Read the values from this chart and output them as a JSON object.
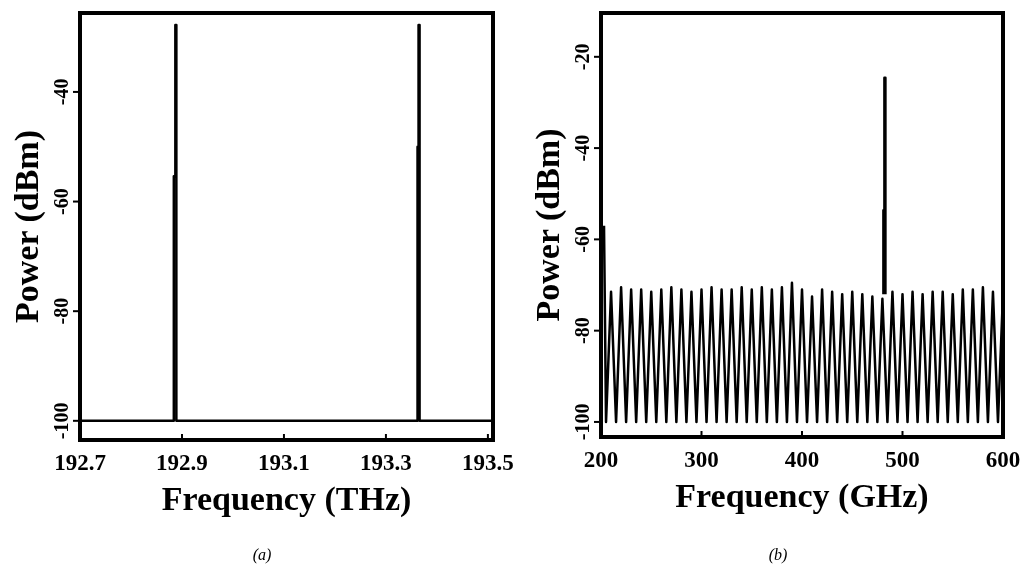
{
  "chart_data": [
    {
      "type": "line",
      "xlabel": "Frequency (THz)",
      "ylabel": "Power (dBm)",
      "xlim": [
        192.7,
        193.51
      ],
      "ylim": [
        -103.5,
        -25.6
      ],
      "xticks": [
        192.7,
        192.9,
        193.1,
        193.3,
        193.5
      ],
      "yticks": [
        -40,
        -60,
        -80,
        -100
      ],
      "annotations": [
        "(a)"
      ],
      "series": [
        {
          "color": "#000000",
          "x": [
            192.7,
            192.884,
            192.884,
            192.887,
            192.887,
            192.889,
            192.889,
            193.362,
            193.362,
            193.364,
            193.364,
            193.366,
            193.366,
            193.51
          ],
          "values": [
            -100,
            -100,
            -55.4,
            -55.4,
            -27.8,
            -27.8,
            -100,
            -100,
            -50,
            -50,
            -27.8,
            -27.8,
            -100,
            -100
          ]
        }
      ]
    },
    {
      "type": "line",
      "xlabel": "Frequency (GHz)",
      "ylabel": "Power (dBm)",
      "xlim": [
        200,
        600
      ],
      "ylim": [
        -103.3,
        -10.4
      ],
      "xticks": [
        200,
        300,
        400,
        500,
        600
      ],
      "yticks": [
        -20,
        -40,
        -60,
        -80,
        -100
      ],
      "annotations": [
        "(b)"
      ],
      "series": [
        {
          "color": "#000000",
          "x": [
            203,
            205,
            210,
            215,
            220,
            225,
            230,
            235,
            240,
            245,
            250,
            255,
            260,
            265,
            270,
            275,
            280,
            285,
            290,
            295,
            300,
            305,
            310,
            315,
            320,
            325,
            330,
            335,
            340,
            345,
            350,
            355,
            360,
            365,
            370,
            375,
            380,
            385,
            390,
            395,
            400,
            405,
            410,
            415,
            420,
            425,
            430,
            435,
            440,
            445,
            450,
            455,
            460,
            465,
            470,
            475,
            480,
            485,
            490,
            495,
            500,
            505,
            510,
            515,
            520,
            525,
            530,
            535,
            540,
            545,
            550,
            555,
            560,
            565,
            570,
            575,
            580,
            585,
            590,
            595,
            600
          ],
          "values": [
            -57,
            -100,
            -71.5,
            -100,
            -70.5,
            -100,
            -71,
            -100,
            -71,
            -100,
            -71.5,
            -100,
            -71,
            -100,
            -70.5,
            -100,
            -71,
            -100,
            -71.5,
            -100,
            -71,
            -100,
            -70.5,
            -100,
            -71,
            -100,
            -71,
            -100,
            -70.5,
            -100,
            -71,
            -100,
            -70.5,
            -100,
            -71,
            -100,
            -70.5,
            -100,
            -69.5,
            -100,
            -71,
            -100,
            -72.5,
            -100,
            -71,
            -100,
            -71.5,
            -100,
            -72,
            -100,
            -71.5,
            -100,
            -72,
            -100,
            -72.5,
            -100,
            -73,
            -100,
            -71.5,
            -100,
            -72,
            -100,
            -71.5,
            -100,
            -72,
            -100,
            -71.5,
            -100,
            -71.5,
            -100,
            -72,
            -100,
            -71,
            -100,
            -71,
            -100,
            -70.5,
            -100,
            -71.5,
            -100,
            -72
          ]
        },
        {
          "color": "#000000",
          "x": [
            481,
            481,
            482,
            482,
            483,
            483
          ],
          "values": [
            -72,
            -53.6,
            -53.6,
            -24.6,
            -24.6,
            -72
          ]
        }
      ]
    }
  ]
}
